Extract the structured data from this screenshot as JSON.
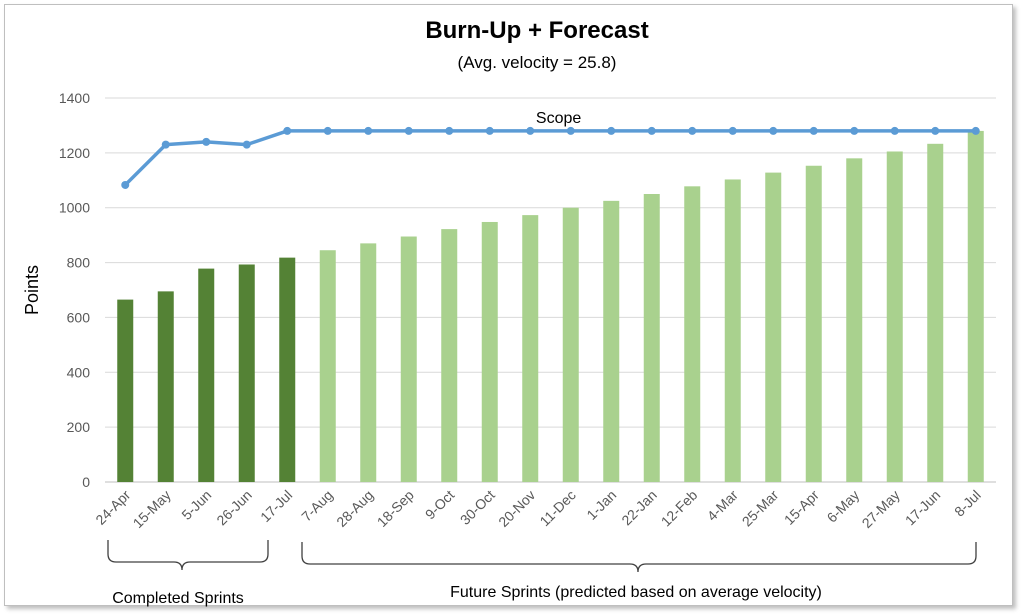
{
  "chart_data": {
    "type": "bar",
    "title": "Burn-Up + Forecast",
    "subtitle": "(Avg. velocity = 25.8)",
    "ylabel": "Points",
    "xlabel": "",
    "ylim": [
      0,
      1400
    ],
    "yticks": [
      0,
      200,
      400,
      600,
      800,
      1000,
      1200,
      1400
    ],
    "grid": true,
    "categories": [
      "24-Apr",
      "15-May",
      "5-Jun",
      "26-Jun",
      "17-Jul",
      "7-Aug",
      "28-Aug",
      "18-Sep",
      "9-Oct",
      "30-Oct",
      "20-Nov",
      "11-Dec",
      "1-Jan",
      "22-Jan",
      "12-Feb",
      "4-Mar",
      "25-Mar",
      "15-Apr",
      "6-May",
      "27-May",
      "17-Jun",
      "8-Jul"
    ],
    "series": [
      {
        "kind": "bar",
        "color": "#548235",
        "values": [
          665,
          695,
          778,
          793,
          818,
          null,
          null,
          null,
          null,
          null,
          null,
          null,
          null,
          null,
          null,
          null,
          null,
          null,
          null,
          null,
          null,
          null
        ]
      },
      {
        "kind": "bar",
        "color": "#a9d18e",
        "values": [
          null,
          null,
          null,
          null,
          null,
          845,
          870,
          895,
          922,
          948,
          973,
          1000,
          1025,
          1050,
          1078,
          1103,
          1128,
          1153,
          1180,
          1205,
          1233,
          1280
        ]
      },
      {
        "name": "Scope",
        "kind": "line",
        "color": "#5b9bd5",
        "values": [
          1083,
          1230,
          1240,
          1230,
          1280,
          1280,
          1280,
          1280,
          1280,
          1280,
          1280,
          1280,
          1280,
          1280,
          1280,
          1280,
          1280,
          1280,
          1280,
          1280,
          1280,
          1280
        ]
      }
    ],
    "annotations": {
      "completed": "Completed Sprints",
      "future": "Future  Sprints (predicted based on average velocity)"
    }
  }
}
